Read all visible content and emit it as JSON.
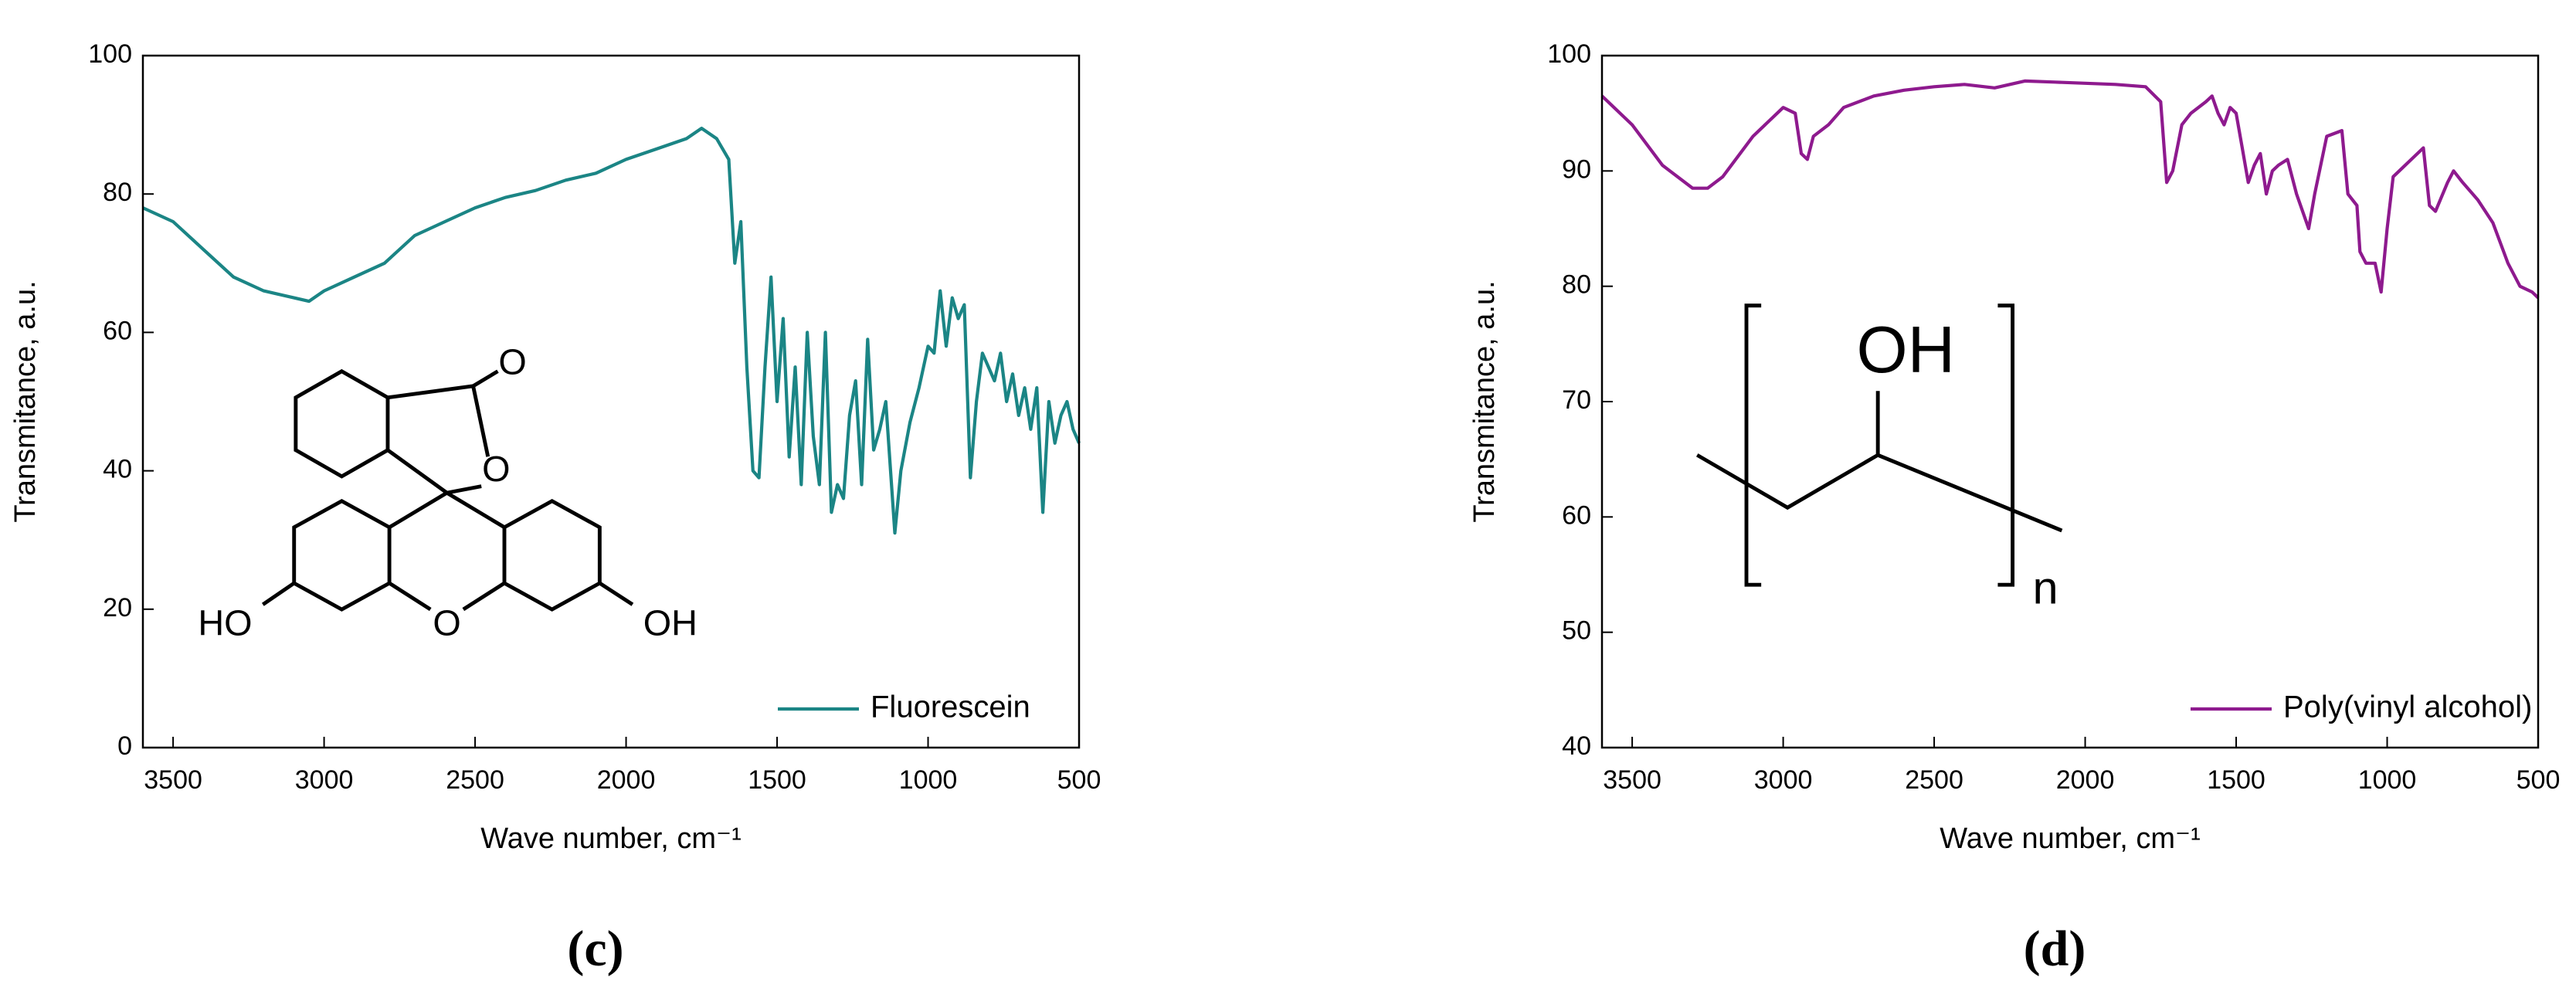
{
  "chart_data": [
    {
      "type": "line",
      "panel_label": "(c)",
      "x_label": "Wave number, cm⁻¹",
      "y_label": "Transmitance, a.u.",
      "xlim": [
        3600,
        500
      ],
      "xticks": [
        3500,
        3000,
        2500,
        2000,
        1500,
        1000,
        500
      ],
      "ylim": [
        0,
        100
      ],
      "yticks": [
        0,
        20,
        40,
        60,
        80,
        100
      ],
      "legend": "lower right",
      "annotations": [
        "O",
        "O",
        "O",
        "HO",
        "OH"
      ],
      "x": [
        3600,
        3500,
        3400,
        3300,
        3200,
        3100,
        3050,
        3000,
        2900,
        2800,
        2700,
        2600,
        2500,
        2400,
        2300,
        2200,
        2100,
        2000,
        1900,
        1800,
        1750,
        1700,
        1660,
        1640,
        1620,
        1600,
        1580,
        1560,
        1540,
        1520,
        1500,
        1480,
        1460,
        1440,
        1420,
        1400,
        1380,
        1360,
        1340,
        1320,
        1300,
        1280,
        1260,
        1240,
        1220,
        1200,
        1180,
        1160,
        1140,
        1110,
        1090,
        1060,
        1030,
        1000,
        980,
        960,
        940,
        920,
        900,
        880,
        860,
        840,
        820,
        800,
        780,
        760,
        740,
        720,
        700,
        680,
        660,
        640,
        620,
        600,
        580,
        560,
        540,
        520,
        500
      ],
      "series": [
        {
          "name": "Fluorescein",
          "color": "#1b8585",
          "values": [
            78,
            76,
            72,
            68,
            66,
            65,
            64.5,
            66,
            68,
            70,
            74,
            76,
            78,
            79.5,
            80.5,
            82,
            83,
            85,
            86.5,
            88,
            89.5,
            88,
            85,
            70,
            76,
            55,
            40,
            39,
            55,
            68,
            50,
            62,
            42,
            55,
            38,
            60,
            45,
            38,
            60,
            34,
            38,
            36,
            48,
            53,
            38,
            59,
            43,
            46,
            50,
            31,
            40,
            47,
            52,
            58,
            57,
            66,
            58,
            65,
            62,
            64,
            39,
            50,
            57,
            55,
            53,
            57,
            50,
            54,
            48,
            52,
            46,
            52,
            34,
            50,
            44,
            48,
            50,
            46,
            44
          ]
        }
      ]
    },
    {
      "type": "line",
      "panel_label": "(d)",
      "x_label": "Wave number, cm⁻¹",
      "y_label": "Transmitance, a.u.",
      "xlim": [
        3600,
        500
      ],
      "xticks": [
        3500,
        3000,
        2500,
        2000,
        1500,
        1000,
        500
      ],
      "ylim": [
        40,
        100
      ],
      "yticks": [
        40,
        50,
        60,
        70,
        80,
        90,
        100
      ],
      "legend": "lower right",
      "annotations": [
        "OH",
        "n"
      ],
      "x": [
        3600,
        3500,
        3400,
        3300,
        3250,
        3200,
        3100,
        3000,
        2960,
        2940,
        2920,
        2900,
        2850,
        2800,
        2700,
        2600,
        2500,
        2400,
        2300,
        2200,
        2100,
        2000,
        1900,
        1800,
        1750,
        1730,
        1710,
        1680,
        1650,
        1600,
        1580,
        1560,
        1540,
        1520,
        1500,
        1480,
        1460,
        1440,
        1420,
        1400,
        1380,
        1360,
        1330,
        1300,
        1260,
        1240,
        1200,
        1150,
        1130,
        1100,
        1090,
        1070,
        1040,
        1020,
        1000,
        980,
        960,
        920,
        880,
        860,
        840,
        800,
        780,
        750,
        700,
        650,
        600,
        560,
        520,
        500
      ],
      "series": [
        {
          "name": "Poly(vinyl alcohol)",
          "color": "#8e1a8e",
          "values": [
            96.5,
            94,
            90.5,
            88.5,
            88.5,
            89.5,
            93,
            95.5,
            95,
            91.5,
            91,
            93,
            94,
            95.5,
            96.5,
            97,
            97.3,
            97.5,
            97.2,
            97.8,
            97.7,
            97.6,
            97.5,
            97.3,
            96,
            89,
            90,
            94,
            95,
            96,
            96.5,
            95,
            94,
            95.5,
            95,
            92,
            89,
            90.5,
            91.5,
            88,
            90,
            90.5,
            91,
            88,
            85,
            88,
            93,
            93.5,
            88,
            87,
            83,
            82,
            82,
            79.5,
            85,
            89.5,
            90,
            91,
            92,
            87,
            86.5,
            89,
            90,
            89,
            87.5,
            85.5,
            82,
            80,
            79.5,
            79
          ]
        }
      ]
    }
  ]
}
